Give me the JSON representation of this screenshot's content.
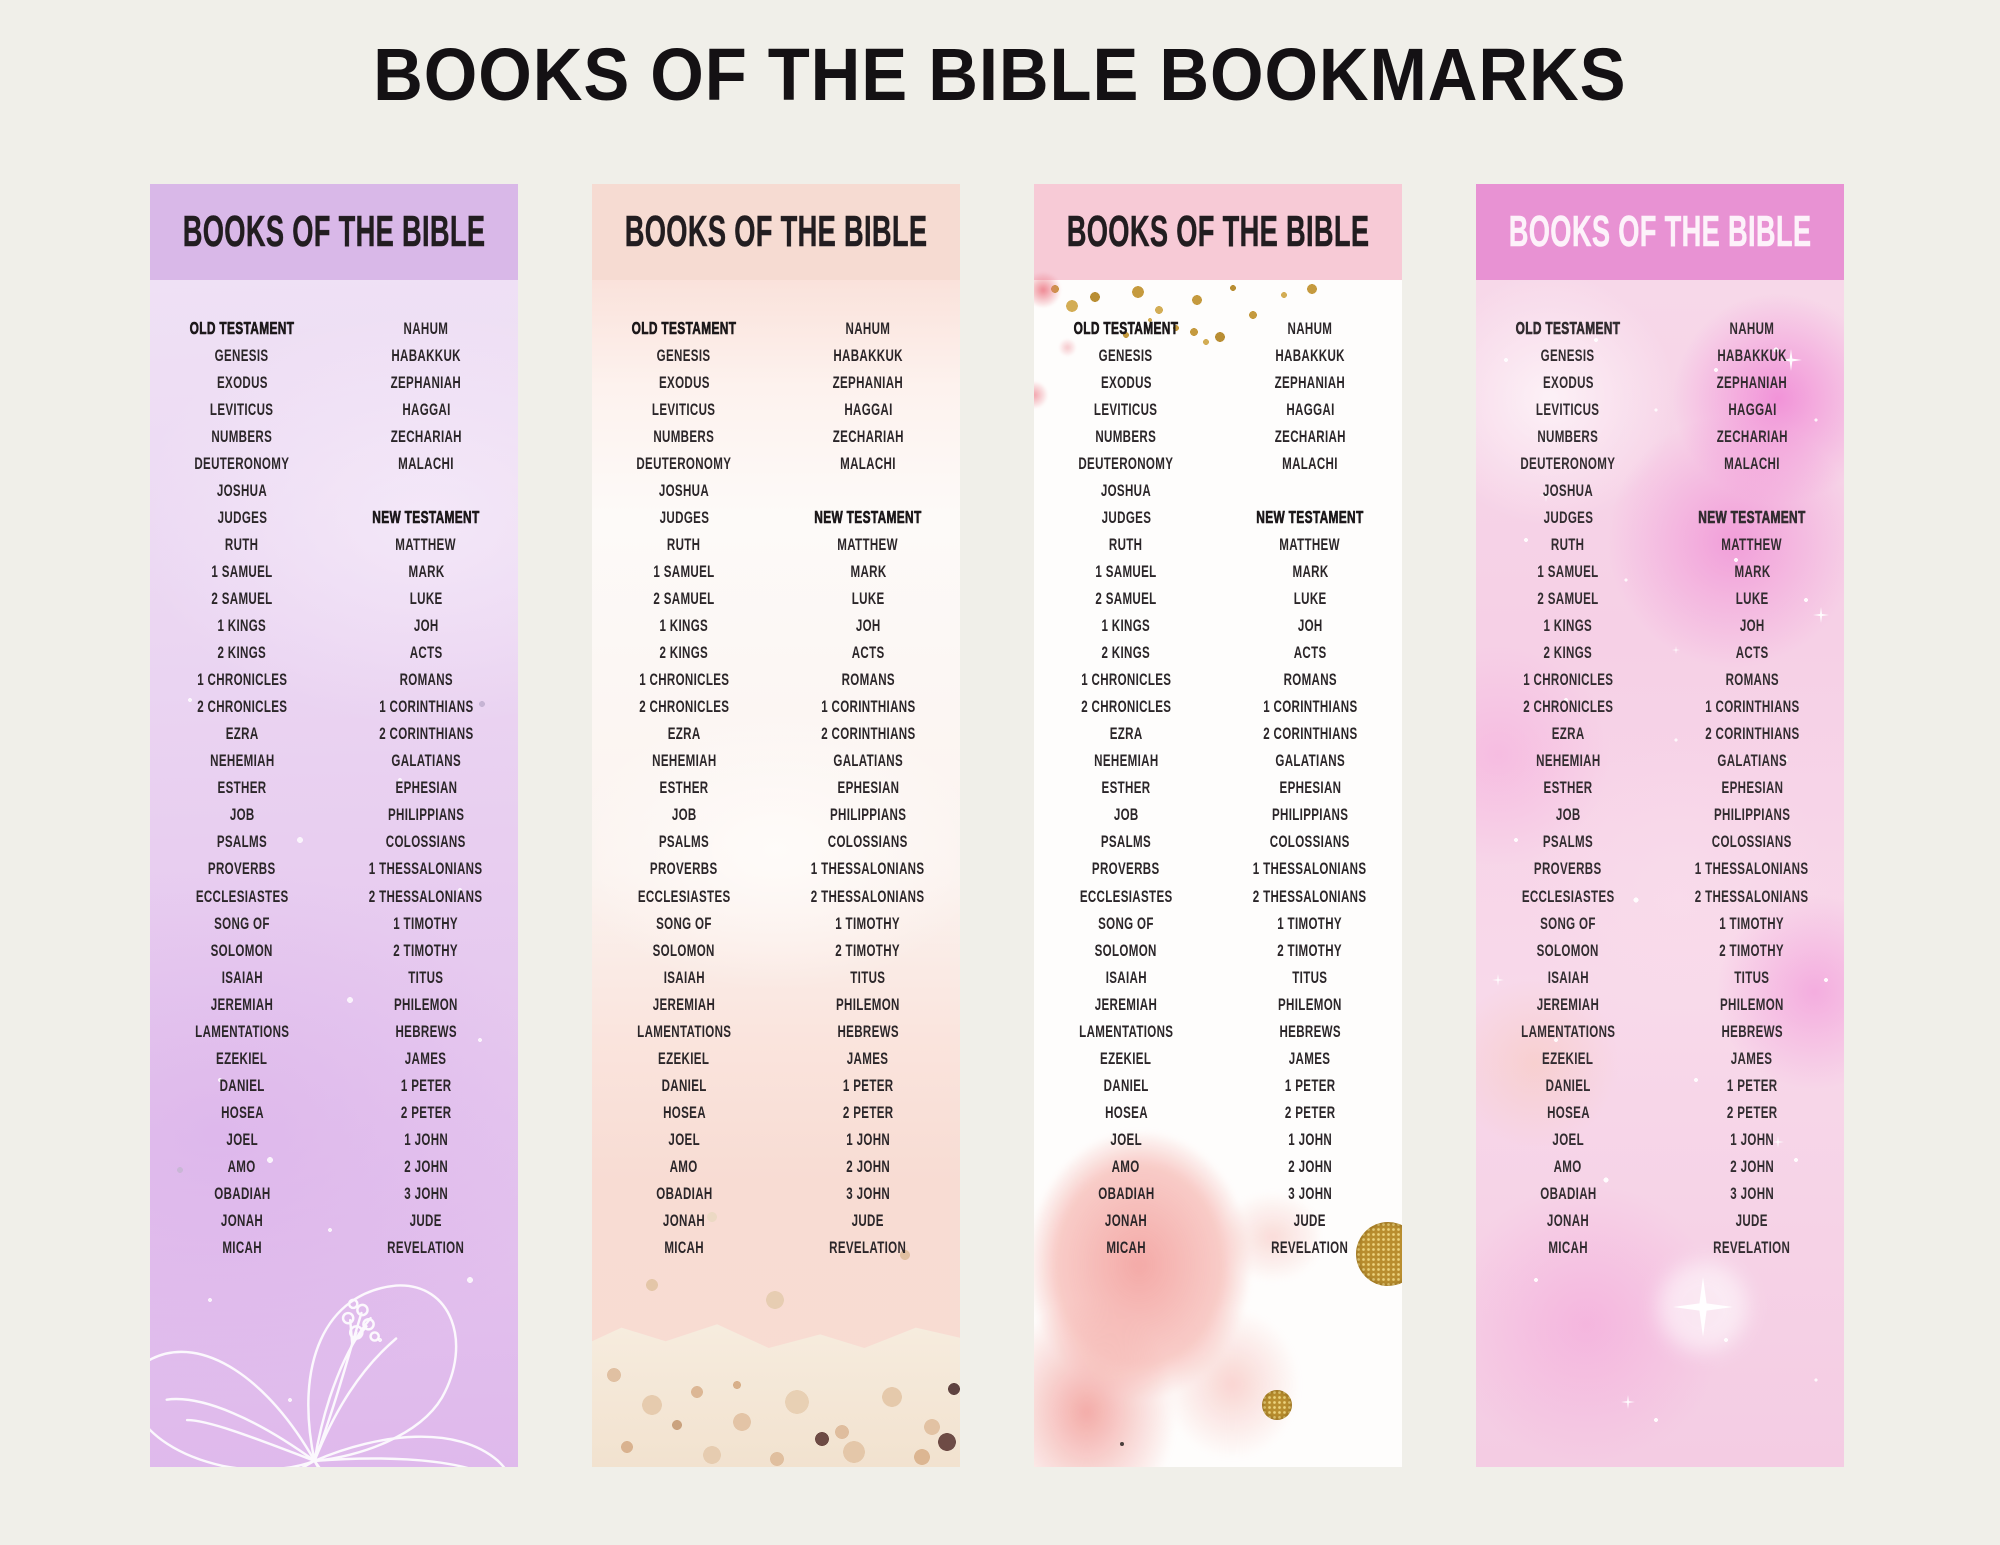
{
  "page": {
    "title": "BOOKS OF THE BIBLE BOOKMARKS",
    "background": "#f0efe9",
    "title_color": "#141114"
  },
  "bookmark_header": "BOOKS OF THE BIBLE",
  "rows": [
    {
      "left": "OLD TESTAMENT",
      "left_hdr": true,
      "right": "NAHUM"
    },
    {
      "left": "GENESIS",
      "right": "HABAKKUK"
    },
    {
      "left": "EXODUS",
      "right": "ZEPHANIAH"
    },
    {
      "left": "LEVITICUS",
      "right": "HAGGAI"
    },
    {
      "left": "NUMBERS",
      "right": "ZECHARIAH"
    },
    {
      "left": "DEUTERONOMY",
      "right": "MALACHI"
    },
    {
      "left": "JOSHUA",
      "right": ""
    },
    {
      "left": "JUDGES",
      "right": "NEW TESTAMENT",
      "right_hdr": true
    },
    {
      "left": "RUTH",
      "right": "MATTHEW"
    },
    {
      "left": "1 SAMUEL",
      "right": "MARK"
    },
    {
      "left": "2 SAMUEL",
      "right": "LUKE"
    },
    {
      "left": "1 KINGS",
      "right": "JOH"
    },
    {
      "left": "2 KINGS",
      "right": "ACTS"
    },
    {
      "left": "1 CHRONICLES",
      "right": "ROMANS"
    },
    {
      "left": "2 CHRONICLES",
      "right": "1 CORINTHIANS"
    },
    {
      "left": "EZRA",
      "right": "2 CORINTHIANS"
    },
    {
      "left": "NEHEMIAH",
      "right": "GALATIANS"
    },
    {
      "left": "ESTHER",
      "right": "EPHESIAN"
    },
    {
      "left": "JOB",
      "right": "PHILIPPIANS"
    },
    {
      "left": "PSALMS",
      "right": "COLOSSIANS"
    },
    {
      "left": "PROVERBS",
      "right": "1 THESSALONIANS"
    },
    {
      "left": "ECCLESIASTES",
      "right": "2 THESSALONIANS"
    },
    {
      "left": "SONG OF",
      "right": "1 TIMOTHY"
    },
    {
      "left": "SOLOMON",
      "right": "2 TIMOTHY"
    },
    {
      "left": "ISAIAH",
      "right": "TITUS"
    },
    {
      "left": "JEREMIAH",
      "right": "PHILEMON"
    },
    {
      "left": "LAMENTATIONS",
      "right": "HEBREWS"
    },
    {
      "left": "EZEKIEL",
      "right": "JAMES"
    },
    {
      "left": "DANIEL",
      "right": "1 PETER"
    },
    {
      "left": "HOSEA",
      "right": "2 PETER"
    },
    {
      "left": "JOEL",
      "right": "1 JOHN"
    },
    {
      "left": "AMO",
      "right": "2 JOHN"
    },
    {
      "left": "OBADIAH",
      "right": "3 JOHN"
    },
    {
      "left": "JONAH",
      "right": "JUDE"
    },
    {
      "left": "MICAH",
      "right": "REVELATION"
    }
  ],
  "bookmarks": [
    {
      "name": "lavender-floral",
      "header_bg": "#d9b8e8",
      "header_text_color": "#221d20",
      "accent": "#e5c6ee"
    },
    {
      "name": "peach-watercolor",
      "header_bg": "#f6dbd2",
      "header_text_color": "#221d20",
      "accent": "#f8dcd3"
    },
    {
      "name": "pink-gold",
      "header_bg": "#f7cad6",
      "header_text_color": "#221d20",
      "accent": "#c59a3e"
    },
    {
      "name": "pink-galaxy",
      "header_bg": "#e892d3",
      "header_text_color": "#fdf2fa",
      "accent": "#ef7ecf"
    }
  ]
}
